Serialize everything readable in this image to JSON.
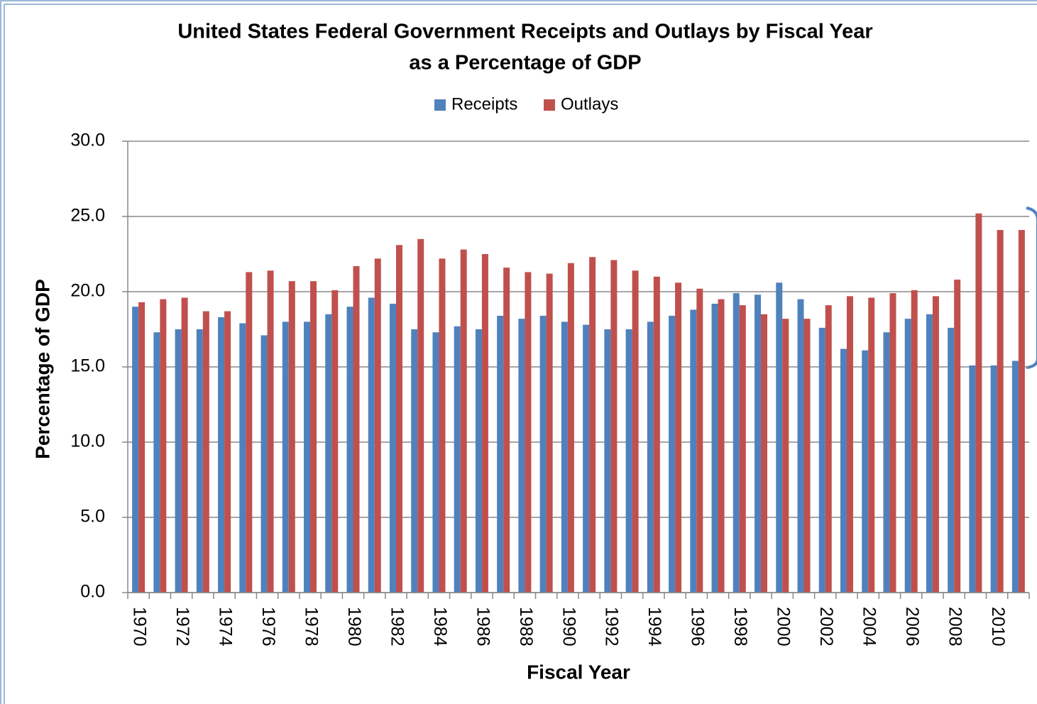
{
  "chart_data": {
    "type": "bar",
    "title": "United States Federal Government Receipts and Outlays by Fiscal Year",
    "subtitle": "as a Percentage of GDP",
    "x_label": "Fiscal Year",
    "y_label": "Percentage of GDP",
    "legend": "top",
    "grid": true,
    "categories": [
      "1970",
      null,
      "1972",
      null,
      "1974",
      null,
      "1976",
      null,
      "1978",
      null,
      "1980",
      null,
      "1982",
      null,
      "1984",
      null,
      "1986",
      null,
      "1988",
      null,
      "1990",
      null,
      "1992",
      null,
      "1994",
      null,
      "1996",
      null,
      "1998",
      null,
      "2000",
      null,
      "2002",
      null,
      "2004",
      null,
      "2006",
      null,
      "2008",
      null,
      "2010",
      null
    ],
    "series": [
      {
        "name": "Receipts",
        "color": "#4f81bd",
        "values": [
          19.0,
          17.3,
          17.5,
          17.5,
          18.3,
          17.9,
          17.1,
          18.0,
          18.0,
          18.5,
          19.0,
          19.6,
          19.2,
          17.5,
          17.3,
          17.7,
          17.5,
          18.4,
          18.2,
          18.4,
          18.0,
          17.8,
          17.5,
          17.5,
          18.0,
          18.4,
          18.8,
          19.2,
          19.9,
          19.8,
          20.6,
          19.5,
          17.6,
          16.2,
          16.1,
          17.3,
          18.2,
          18.5,
          17.6,
          15.1,
          15.1,
          15.4
        ]
      },
      {
        "name": "Outlays",
        "color": "#c0504d",
        "values": [
          19.3,
          19.5,
          19.6,
          18.7,
          18.7,
          21.3,
          21.4,
          20.7,
          20.7,
          20.1,
          21.7,
          22.2,
          23.1,
          23.5,
          22.2,
          22.8,
          22.5,
          21.6,
          21.3,
          21.2,
          21.9,
          22.3,
          22.1,
          21.4,
          21.0,
          20.6,
          20.2,
          19.5,
          19.1,
          18.5,
          18.2,
          18.2,
          19.1,
          19.7,
          19.6,
          19.9,
          20.1,
          19.7,
          20.8,
          25.2,
          24.1,
          24.1
        ]
      }
    ],
    "ylim": [
      0,
      30
    ],
    "yticks": [
      {
        "value": 0,
        "label": "0.0"
      },
      {
        "value": 5,
        "label": "5.0"
      },
      {
        "value": 10,
        "label": "10.0"
      },
      {
        "value": 15,
        "label": "15.0"
      },
      {
        "value": 20,
        "label": "20.0"
      },
      {
        "value": 25,
        "label": "25.0"
      },
      {
        "value": 30,
        "label": "30.0"
      }
    ]
  }
}
